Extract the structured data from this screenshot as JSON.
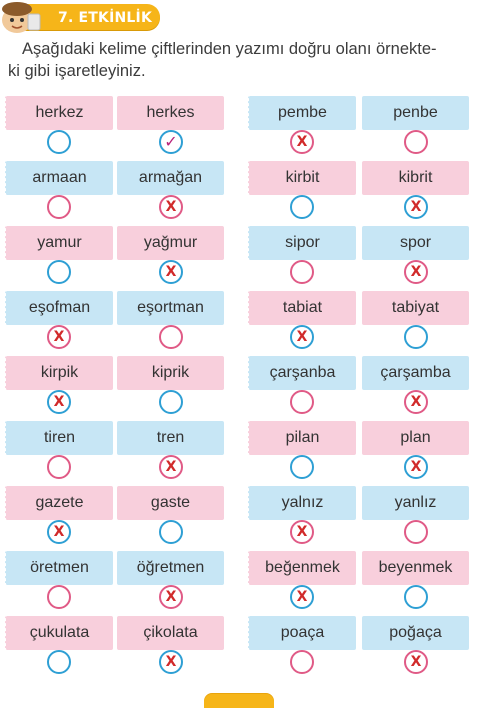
{
  "activity": {
    "title": "7. ETKİNLİK"
  },
  "instruction": "Aşağıdaki kelime çiftlerinden yazımı doğru olanı örnekte-\nki gibi işaretleyiniz.",
  "colors": {
    "pink_card": "#f8cfdc",
    "blue_card": "#c7e6f5",
    "blue_circle": "#2e9fd4",
    "pink_circle": "#e05a86",
    "x_mark": "#d12a2a",
    "check_mark": "#b8237a",
    "banner": "#f6b519"
  },
  "rows": [
    {
      "cells": [
        {
          "word": "herkez",
          "card": "pink",
          "circle": "blue",
          "mark": ""
        },
        {
          "word": "herkes",
          "card": "pink",
          "circle": "blue",
          "mark": "✓"
        },
        {
          "word": "pembe",
          "card": "blue",
          "circle": "pink",
          "mark": "X"
        },
        {
          "word": "penbe",
          "card": "blue",
          "circle": "pink",
          "mark": ""
        }
      ]
    },
    {
      "cells": [
        {
          "word": "armaan",
          "card": "blue",
          "circle": "pink",
          "mark": ""
        },
        {
          "word": "armağan",
          "card": "blue",
          "circle": "pink",
          "mark": "X"
        },
        {
          "word": "kirbit",
          "card": "pink",
          "circle": "blue",
          "mark": ""
        },
        {
          "word": "kibrit",
          "card": "pink",
          "circle": "blue",
          "mark": "X"
        }
      ]
    },
    {
      "cells": [
        {
          "word": "yamur",
          "card": "pink",
          "circle": "blue",
          "mark": ""
        },
        {
          "word": "yağmur",
          "card": "pink",
          "circle": "blue",
          "mark": "X"
        },
        {
          "word": "sipor",
          "card": "blue",
          "circle": "pink",
          "mark": ""
        },
        {
          "word": "spor",
          "card": "blue",
          "circle": "pink",
          "mark": "X"
        }
      ]
    },
    {
      "cells": [
        {
          "word": "eşofman",
          "card": "blue",
          "circle": "pink",
          "mark": "X"
        },
        {
          "word": "eşortman",
          "card": "blue",
          "circle": "pink",
          "mark": ""
        },
        {
          "word": "tabiat",
          "card": "pink",
          "circle": "blue",
          "mark": "X"
        },
        {
          "word": "tabiyat",
          "card": "pink",
          "circle": "blue",
          "mark": ""
        }
      ]
    },
    {
      "cells": [
        {
          "word": "kirpik",
          "card": "pink",
          "circle": "blue",
          "mark": "X"
        },
        {
          "word": "kiprik",
          "card": "pink",
          "circle": "blue",
          "mark": ""
        },
        {
          "word": "çarşanba",
          "card": "blue",
          "circle": "pink",
          "mark": ""
        },
        {
          "word": "çarşamba",
          "card": "blue",
          "circle": "pink",
          "mark": "X"
        }
      ]
    },
    {
      "cells": [
        {
          "word": "tiren",
          "card": "blue",
          "circle": "pink",
          "mark": ""
        },
        {
          "word": "tren",
          "card": "blue",
          "circle": "pink",
          "mark": "X"
        },
        {
          "word": "pilan",
          "card": "pink",
          "circle": "blue",
          "mark": ""
        },
        {
          "word": "plan",
          "card": "pink",
          "circle": "blue",
          "mark": "X"
        }
      ]
    },
    {
      "cells": [
        {
          "word": "gazete",
          "card": "pink",
          "circle": "blue",
          "mark": "X"
        },
        {
          "word": "gaste",
          "card": "pink",
          "circle": "blue",
          "mark": ""
        },
        {
          "word": "yalnız",
          "card": "blue",
          "circle": "pink",
          "mark": "X"
        },
        {
          "word": "yanlız",
          "card": "blue",
          "circle": "pink",
          "mark": ""
        }
      ]
    },
    {
      "cells": [
        {
          "word": "öretmen",
          "card": "blue",
          "circle": "pink",
          "mark": ""
        },
        {
          "word": "öğretmen",
          "card": "blue",
          "circle": "pink",
          "mark": "X"
        },
        {
          "word": "beğenmek",
          "card": "pink",
          "circle": "blue",
          "mark": "X"
        },
        {
          "word": "beyenmek",
          "card": "pink",
          "circle": "blue",
          "mark": ""
        }
      ]
    },
    {
      "cells": [
        {
          "word": "çukulata",
          "card": "pink",
          "circle": "blue",
          "mark": ""
        },
        {
          "word": "çikolata",
          "card": "pink",
          "circle": "blue",
          "mark": "X"
        },
        {
          "word": "poaça",
          "card": "blue",
          "circle": "pink",
          "mark": ""
        },
        {
          "word": "poğaça",
          "card": "blue",
          "circle": "pink",
          "mark": "X"
        }
      ]
    }
  ]
}
